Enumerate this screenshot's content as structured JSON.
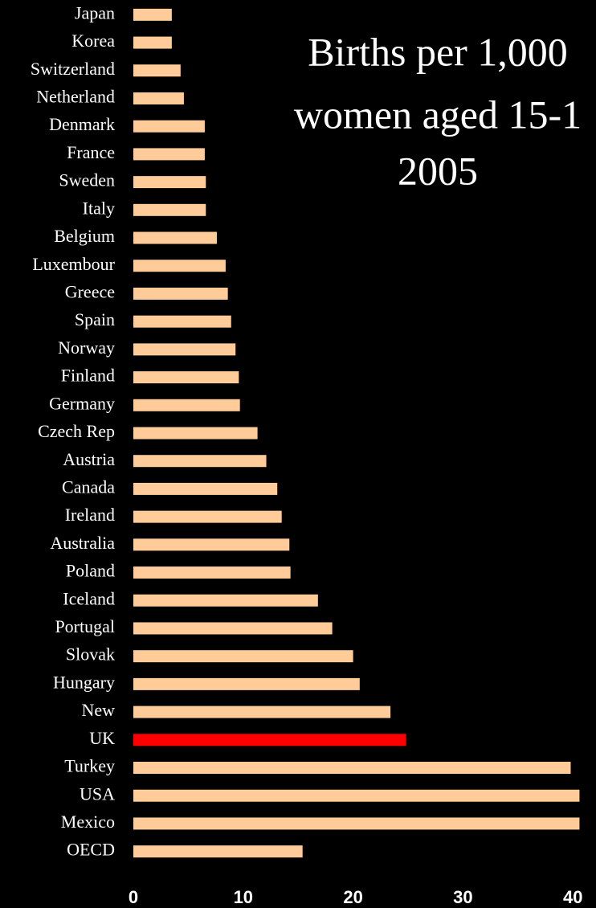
{
  "chart_data": {
    "type": "barh",
    "title": [
      "Births per 1,000",
      "women aged 15-1",
      "2005"
    ],
    "categories": [
      "Japan",
      "Korea",
      "Switzerland",
      "Netherland",
      "Denmark",
      "France",
      "Sweden",
      "Italy",
      "Belgium",
      "Luxembour",
      "Greece",
      "Spain",
      "Norway",
      "Finland",
      "Germany",
      "Czech Rep",
      "Austria",
      "Canada",
      "Ireland",
      "Australia",
      "Poland",
      "Iceland",
      "Portugal",
      "Slovak",
      "Hungary",
      "New",
      "UK",
      "Turkey",
      "USA",
      "Mexico",
      "OECD"
    ],
    "values": [
      3.5,
      3.5,
      4.3,
      4.6,
      6.5,
      6.5,
      6.6,
      6.6,
      7.6,
      8.4,
      8.6,
      8.9,
      9.3,
      9.6,
      9.7,
      11.3,
      12.1,
      13.1,
      13.5,
      14.2,
      14.3,
      16.8,
      18.1,
      20.0,
      20.6,
      23.4,
      24.8,
      39.8,
      40.6,
      40.6,
      15.4
    ],
    "colors": [
      "#ffcc99",
      "#ffcc99",
      "#ffcc99",
      "#ffcc99",
      "#ffcc99",
      "#ffcc99",
      "#ffcc99",
      "#ffcc99",
      "#ffcc99",
      "#ffcc99",
      "#ffcc99",
      "#ffcc99",
      "#ffcc99",
      "#ffcc99",
      "#ffcc99",
      "#ffcc99",
      "#ffcc99",
      "#ffcc99",
      "#ffcc99",
      "#ffcc99",
      "#ffcc99",
      "#ffcc99",
      "#ffcc99",
      "#ffcc99",
      "#ffcc99",
      "#ffcc99",
      "#ff0000",
      "#ffcc99",
      "#ffcc99",
      "#ffcc99",
      "#ffcc99"
    ],
    "xlim": [
      0,
      42
    ],
    "xticks": [
      0,
      10,
      20,
      30,
      40
    ],
    "grid": false
  }
}
